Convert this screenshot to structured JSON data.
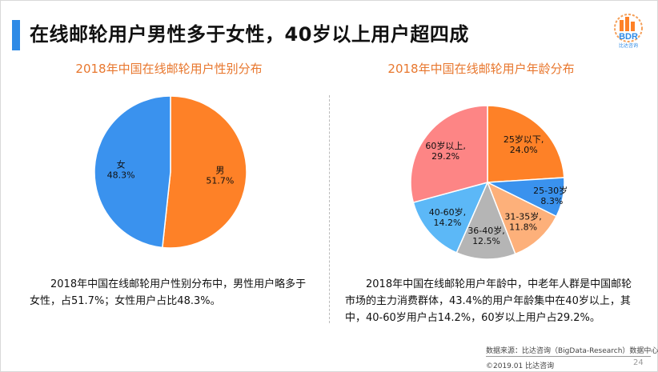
{
  "header": {
    "title": "在线邮轮用户男性多于女性，40岁以上用户超四成",
    "logo_text": "BDR",
    "logo_subtext": "比达咨询"
  },
  "colors": {
    "accent": "#2e8ae6",
    "title_orange": "#e8772e"
  },
  "chart_data": [
    {
      "type": "pie",
      "title": "2018年中国在线邮轮用户性别分布",
      "slices": [
        {
          "name": "男",
          "value": 51.7,
          "label": "51.7%",
          "color": "#fe8127"
        },
        {
          "name": "女",
          "value": 48.3,
          "label": "48.3%",
          "color": "#3a92ee"
        }
      ]
    },
    {
      "type": "pie",
      "title": "2018年中国在线邮轮用户年龄分布",
      "slices": [
        {
          "name": "25岁以下,",
          "value": 24.0,
          "label": "24.0%",
          "color": "#fe8127"
        },
        {
          "name": "25-30岁,",
          "value": 8.3,
          "label": "8.3%",
          "color": "#3a92ee"
        },
        {
          "name": "31-35岁,",
          "value": 11.8,
          "label": "11.8%",
          "color": "#fdb07a"
        },
        {
          "name": "36-40岁,",
          "value": 12.5,
          "label": "12.5%",
          "color": "#b5b5b5"
        },
        {
          "name": "40-60岁,",
          "value": 14.2,
          "label": "14.2%",
          "color": "#5cb8f7"
        },
        {
          "name": "60岁以上,",
          "value": 29.2,
          "label": "29.2%",
          "color": "#fd8585"
        }
      ]
    }
  ],
  "descriptions": {
    "left": "2018年中国在线邮轮用户性别分布中，男性用户略多于女性，占51.7%；女性用户占比48.3%。",
    "right": "2018年中国在线邮轮用户年龄中，中老年人群是中国邮轮市场的主力消费群体，43.4%的用户年龄集中在40岁以上，其中，40-60岁用户占14.2%，60岁以上用户占29.2%。"
  },
  "footer": {
    "source": "数据来源：比达咨询（BigData-Research）数据中心",
    "copyright": "©2019.01  比达咨询",
    "page": "24"
  }
}
